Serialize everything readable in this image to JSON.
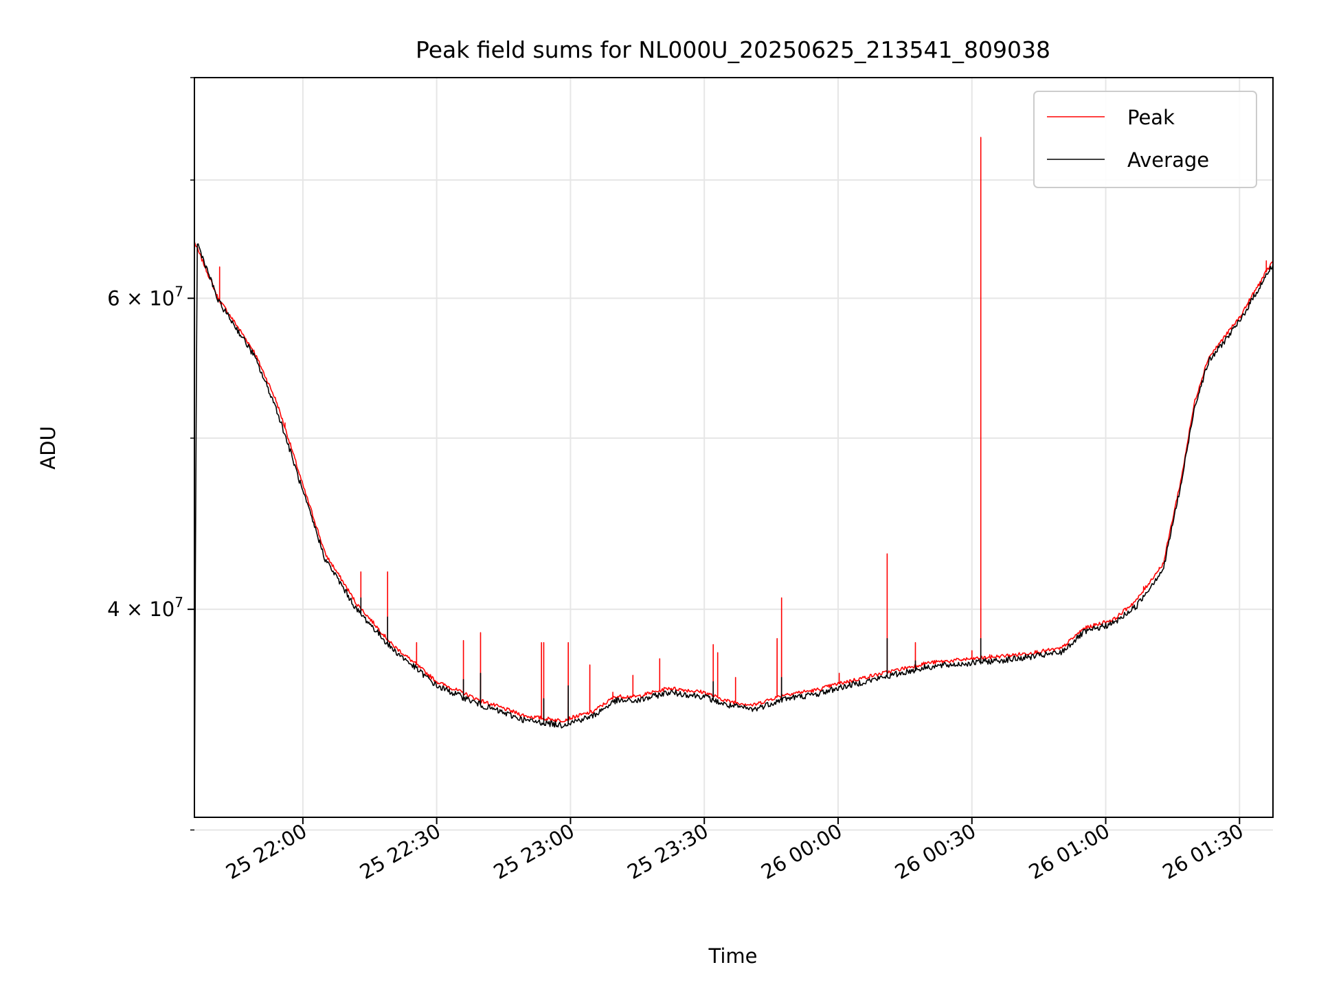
{
  "chart_data": {
    "type": "line",
    "title": "Peak field sums for NL000U_20250625_213541_809038",
    "xlabel": "Time",
    "ylabel": "ADU",
    "yscale": "log",
    "ylim": [
      30500000,
      80000000
    ],
    "xlim": [
      "2025-06-25 21:35:41",
      "2025-06-26 01:37:30"
    ],
    "x_ticks": [
      {
        "time": "2025-06-25 22:00",
        "label": "25 22:00"
      },
      {
        "time": "2025-06-25 22:30",
        "label": "25 22:30"
      },
      {
        "time": "2025-06-25 23:00",
        "label": "25 23:00"
      },
      {
        "time": "2025-06-25 23:30",
        "label": "25 23:30"
      },
      {
        "time": "2025-06-26 00:00",
        "label": "26 00:00"
      },
      {
        "time": "2025-06-26 00:30",
        "label": "26 00:30"
      },
      {
        "time": "2025-06-26 01:00",
        "label": "26 01:00"
      },
      {
        "time": "2025-06-26 01:30",
        "label": "26 01:30"
      }
    ],
    "y_ticks": [
      {
        "value": 40000000,
        "mantissa": "4",
        "exponent": "7"
      },
      {
        "value": 60000000,
        "mantissa": "6",
        "exponent": "7"
      }
    ],
    "y_minor_ticks": [
      30000000,
      50000000,
      70000000,
      80000000
    ],
    "grid": true,
    "legend_position": "top-right",
    "series": [
      {
        "name": "Peak",
        "color": "#ff0000",
        "baseline": [
          [
            "2025-06-25 21:35:45",
            64500000
          ],
          [
            "2025-06-25 21:41:00",
            60000000
          ],
          [
            "2025-06-25 21:49:00",
            56000000
          ],
          [
            "2025-06-25 21:54:00",
            52500000
          ],
          [
            "2025-06-25 22:00:00",
            47000000
          ],
          [
            "2025-06-25 22:05:00",
            43000000
          ],
          [
            "2025-06-25 22:12:00",
            40300000
          ],
          [
            "2025-06-25 22:20:00",
            38200000
          ],
          [
            "2025-06-25 22:30:00",
            36400000
          ],
          [
            "2025-06-25 22:40:00",
            35500000
          ],
          [
            "2025-06-25 22:50:00",
            34800000
          ],
          [
            "2025-06-25 22:58:00",
            34600000
          ],
          [
            "2025-06-25 23:05:00",
            35000000
          ],
          [
            "2025-06-25 23:10:00",
            35700000
          ],
          [
            "2025-06-25 23:15:00",
            35700000
          ],
          [
            "2025-06-25 23:22:00",
            36100000
          ],
          [
            "2025-06-25 23:30:00",
            35900000
          ],
          [
            "2025-06-25 23:35:00",
            35500000
          ],
          [
            "2025-06-25 23:41:00",
            35300000
          ],
          [
            "2025-06-25 23:48:00",
            35800000
          ],
          [
            "2025-06-25 23:55:00",
            36000000
          ],
          [
            "2025-06-26 00:00:00",
            36300000
          ],
          [
            "2025-06-26 00:10:00",
            36800000
          ],
          [
            "2025-06-26 00:20:00",
            37300000
          ],
          [
            "2025-06-26 00:30:00",
            37500000
          ],
          [
            "2025-06-26 00:40:00",
            37700000
          ],
          [
            "2025-06-26 00:50:00",
            38000000
          ],
          [
            "2025-06-26 00:55:00",
            39000000
          ],
          [
            "2025-06-26 01:02:00",
            39500000
          ],
          [
            "2025-06-26 01:07:00",
            40500000
          ],
          [
            "2025-06-26 01:13:00",
            42500000
          ],
          [
            "2025-06-26 01:17:00",
            47500000
          ],
          [
            "2025-06-26 01:20:00",
            52500000
          ],
          [
            "2025-06-26 01:23:00",
            55500000
          ],
          [
            "2025-06-26 01:30:00",
            58500000
          ],
          [
            "2025-06-26 01:35:00",
            61500000
          ],
          [
            "2025-06-26 01:37:30",
            63000000
          ]
        ],
        "spikes": [
          [
            "2025-06-25 21:35:41",
            80000000
          ],
          [
            "2025-06-25 21:41:20",
            62500000
          ],
          [
            "2025-06-25 21:56:00",
            51000000
          ],
          [
            "2025-06-25 22:13:00",
            42000000
          ],
          [
            "2025-06-25 22:19:00",
            42000000
          ],
          [
            "2025-06-25 22:25:30",
            38300000
          ],
          [
            "2025-06-25 22:36:00",
            38400000
          ],
          [
            "2025-06-25 22:39:50",
            38800000
          ],
          [
            "2025-06-25 22:53:30",
            38300000
          ],
          [
            "2025-06-25 22:54:00",
            38300000
          ],
          [
            "2025-06-25 22:59:30",
            38300000
          ],
          [
            "2025-06-25 23:04:20",
            37200000
          ],
          [
            "2025-06-25 23:09:30",
            35900000
          ],
          [
            "2025-06-25 23:14:00",
            36700000
          ],
          [
            "2025-06-25 23:20:00",
            37500000
          ],
          [
            "2025-06-25 23:32:00",
            38200000
          ],
          [
            "2025-06-25 23:33:00",
            37800000
          ],
          [
            "2025-06-25 23:37:00",
            36600000
          ],
          [
            "2025-06-25 23:46:20",
            38500000
          ],
          [
            "2025-06-25 23:47:20",
            40600000
          ],
          [
            "2025-06-26 00:00:15",
            36800000
          ],
          [
            "2025-06-26 00:11:00",
            43000000
          ],
          [
            "2025-06-26 00:17:20",
            38300000
          ],
          [
            "2025-06-26 00:30:00",
            37900000
          ],
          [
            "2025-06-26 00:32:00",
            74000000
          ],
          [
            "2025-06-26 00:34:00",
            37700000
          ],
          [
            "2025-06-26 01:08:30",
            41200000
          ],
          [
            "2025-06-26 01:12:00",
            42200000
          ],
          [
            "2025-06-26 01:32:00",
            59200000
          ],
          [
            "2025-06-26 01:36:00",
            63000000
          ]
        ]
      },
      {
        "name": "Average",
        "color": "#000000",
        "baseline": [
          [
            "2025-06-25 21:35:41",
            30500000
          ],
          [
            "2025-06-25 21:36:20",
            64500000
          ],
          [
            "2025-06-25 21:41:00",
            59800000
          ],
          [
            "2025-06-25 21:49:00",
            55700000
          ],
          [
            "2025-06-25 21:54:00",
            52000000
          ],
          [
            "2025-06-25 22:00:00",
            46600000
          ],
          [
            "2025-06-25 22:05:00",
            42700000
          ],
          [
            "2025-06-25 22:12:00",
            40000000
          ],
          [
            "2025-06-25 22:20:00",
            38000000
          ],
          [
            "2025-06-25 22:30:00",
            36200000
          ],
          [
            "2025-06-25 22:40:00",
            35300000
          ],
          [
            "2025-06-25 22:50:00",
            34600000
          ],
          [
            "2025-06-25 22:58:00",
            34400000
          ],
          [
            "2025-06-25 23:05:00",
            34800000
          ],
          [
            "2025-06-25 23:10:00",
            35500000
          ],
          [
            "2025-06-25 23:15:00",
            35500000
          ],
          [
            "2025-06-25 23:22:00",
            35900000
          ],
          [
            "2025-06-25 23:30:00",
            35700000
          ],
          [
            "2025-06-25 23:35:00",
            35300000
          ],
          [
            "2025-06-25 23:41:00",
            35100000
          ],
          [
            "2025-06-25 23:48:00",
            35600000
          ],
          [
            "2025-06-25 23:55:00",
            35800000
          ],
          [
            "2025-06-26 00:00:00",
            36100000
          ],
          [
            "2025-06-26 00:10:00",
            36600000
          ],
          [
            "2025-06-26 00:20:00",
            37100000
          ],
          [
            "2025-06-26 00:30:00",
            37300000
          ],
          [
            "2025-06-26 00:40:00",
            37500000
          ],
          [
            "2025-06-26 00:50:00",
            37800000
          ],
          [
            "2025-06-26 00:55:00",
            38800000
          ],
          [
            "2025-06-26 01:02:00",
            39300000
          ],
          [
            "2025-06-26 01:07:00",
            40200000
          ],
          [
            "2025-06-26 01:13:00",
            42200000
          ],
          [
            "2025-06-26 01:17:00",
            47200000
          ],
          [
            "2025-06-26 01:20:00",
            52200000
          ],
          [
            "2025-06-26 01:23:00",
            55200000
          ],
          [
            "2025-06-26 01:30:00",
            58200000
          ],
          [
            "2025-06-26 01:35:00",
            61200000
          ],
          [
            "2025-06-26 01:37:30",
            62700000
          ]
        ],
        "spikes": [
          [
            "2025-06-25 22:13:00",
            40600000
          ],
          [
            "2025-06-25 22:19:00",
            39600000
          ],
          [
            "2025-06-25 22:36:00",
            36500000
          ],
          [
            "2025-06-25 22:39:50",
            36800000
          ],
          [
            "2025-06-25 22:54:00",
            35600000
          ],
          [
            "2025-06-25 22:59:30",
            36200000
          ],
          [
            "2025-06-25 23:32:00",
            36400000
          ],
          [
            "2025-06-25 23:47:20",
            36600000
          ],
          [
            "2025-06-26 00:11:00",
            38500000
          ],
          [
            "2025-06-26 00:17:20",
            37400000
          ],
          [
            "2025-06-26 00:32:00",
            38500000
          ]
        ]
      }
    ]
  }
}
